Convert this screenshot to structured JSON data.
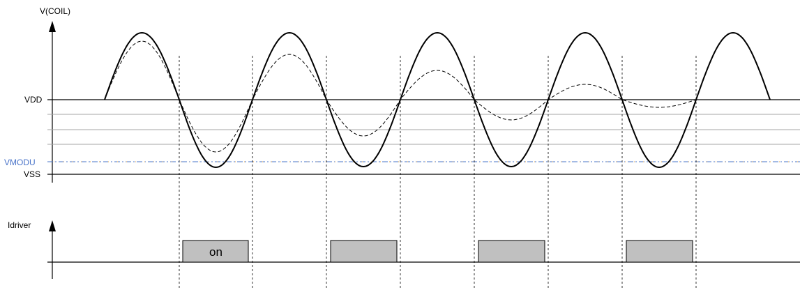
{
  "labels": {
    "vcoil": "V(COIL)",
    "vdd": "VDD",
    "vmodu": "VMODU",
    "vss": "VSS",
    "idriver": "Idriver",
    "pulse_on": "on"
  },
  "colors": {
    "line": "#000000",
    "grid": "#a6a6a6",
    "vmodu": "#4a74c9",
    "vmodu_dot": "#e0a040",
    "pulse_fill": "#c0c0c0"
  }
}
